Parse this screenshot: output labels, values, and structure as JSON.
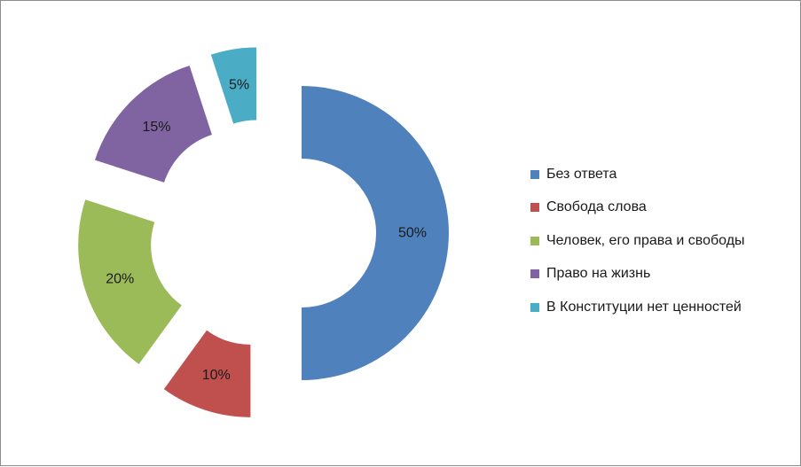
{
  "chart_data": {
    "type": "pie",
    "variant": "exploded-doughnut",
    "slices": [
      {
        "label": "Без ответа",
        "value": 50,
        "data_label": "50%",
        "color": "#4F81BD"
      },
      {
        "label": "Свобода слова",
        "value": 10,
        "data_label": "10%",
        "color": "#C0504D"
      },
      {
        "label": "Человек, его права и свободы",
        "value": 20,
        "data_label": "20%",
        "color": "#9BBB59"
      },
      {
        "label": "Право на жизнь",
        "value": 15,
        "data_label": "15%",
        "color": "#8064A2"
      },
      {
        "label": "В Конституции нет ценностей",
        "value": 5,
        "data_label": "5%",
        "color": "#4BACC6"
      }
    ],
    "legend_position": "right"
  }
}
